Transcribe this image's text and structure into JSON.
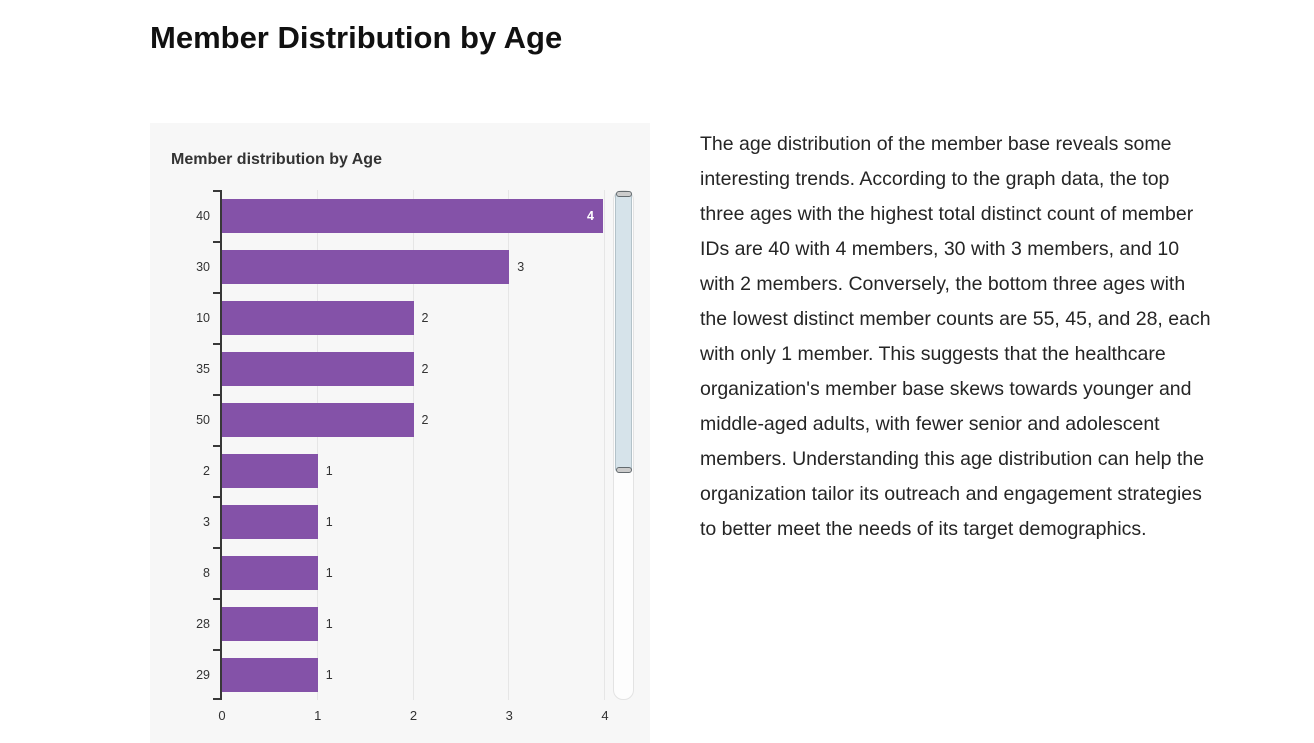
{
  "page": {
    "title": "Member Distribution by Age"
  },
  "chart": {
    "title": "Member distribution by Age",
    "bar_color": "#8452a8",
    "card_background": "#f7f7f7",
    "grid_color": "#e6e6e6",
    "axis_color": "#383838",
    "label_color": "#333333",
    "inside_label_color": "#ffffff",
    "scrollbar_thumb_color": "#d6e3ea"
  },
  "chart_data": {
    "type": "bar",
    "orientation": "horizontal",
    "title": "Member distribution by Age",
    "categories": [
      "40",
      "30",
      "10",
      "35",
      "50",
      "2",
      "3",
      "8",
      "28",
      "29"
    ],
    "values": [
      4,
      3,
      2,
      2,
      2,
      1,
      1,
      1,
      1,
      1
    ],
    "xlabel": "",
    "ylabel": "",
    "xlim": [
      0,
      4
    ],
    "x_ticks": [
      0,
      1,
      2,
      3,
      4
    ],
    "grid": true,
    "data_labels": true,
    "legend": "none",
    "scrollbar": {
      "visible": true,
      "thumb_fraction": 0.55,
      "thumb_position": 0
    }
  },
  "description": {
    "text": "The age distribution of the member base reveals some interesting trends. According to the graph data, the top three ages with the highest total distinct count of member IDs are 40 with 4 members, 30 with 3 members, and 10 with 2 members. Conversely, the bottom three ages with the lowest distinct member counts are 55, 45, and 28, each with only 1 member. This suggests that the healthcare organization's member base skews towards younger and middle-aged adults, with fewer senior and adolescent members. Understanding this age distribution can help the organization tailor its outreach and engagement strategies to better meet the needs of its target demographics."
  }
}
